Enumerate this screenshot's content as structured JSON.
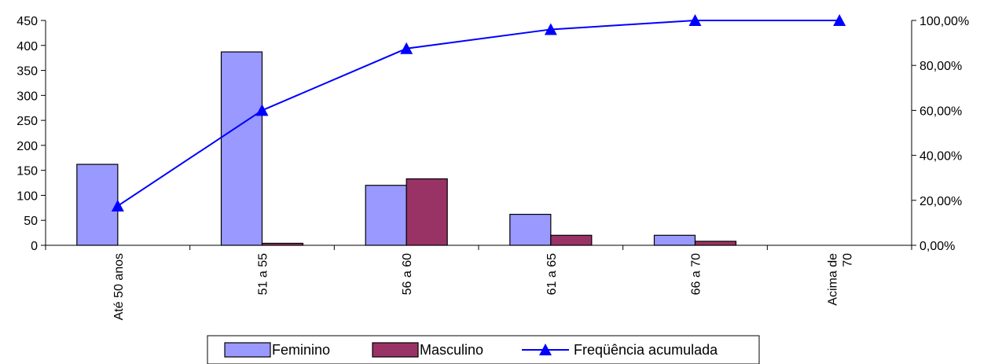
{
  "chart_data": {
    "type": "bar",
    "categories": [
      "Até 50 anos",
      "51  a  55",
      "56 a 60",
      "61 a 65",
      "66 a 70",
      "Acima de 70"
    ],
    "category_lines": [
      [
        "Até 50 anos"
      ],
      [
        "51  a  55"
      ],
      [
        "56 a 60"
      ],
      [
        "61 a 65"
      ],
      [
        "66 a 70"
      ],
      [
        "Acima de",
        "70"
      ]
    ],
    "series": [
      {
        "name": "Feminino",
        "type": "bar",
        "axis": "left",
        "color": "#9999FF",
        "values": [
          162,
          387,
          120,
          62,
          20,
          0
        ]
      },
      {
        "name": "Masculino",
        "type": "bar",
        "axis": "left",
        "color": "#993366",
        "values": [
          0,
          4,
          133,
          20,
          8,
          0
        ]
      },
      {
        "name": "Freqüência acumulada",
        "type": "line",
        "axis": "right",
        "color": "#0000FF",
        "marker": "triangle",
        "values": [
          0.175,
          0.6,
          0.875,
          0.96,
          1.0,
          1.0
        ]
      }
    ],
    "y_left": {
      "min": 0,
      "max": 450,
      "ticks": [
        0,
        50,
        100,
        150,
        200,
        250,
        300,
        350,
        400,
        450
      ]
    },
    "y_right": {
      "min": 0,
      "max": 1,
      "ticks": [
        0,
        0.2,
        0.4,
        0.6,
        0.8,
        1.0
      ],
      "tick_labels": [
        "0,00%",
        "20,00%",
        "40,00%",
        "60,00%",
        "80,00%",
        "100,00%"
      ]
    },
    "grid": false,
    "legend": {
      "position": "bottom",
      "entries": [
        "Feminino",
        "Masculino",
        "Freqüência acumulada"
      ]
    }
  }
}
